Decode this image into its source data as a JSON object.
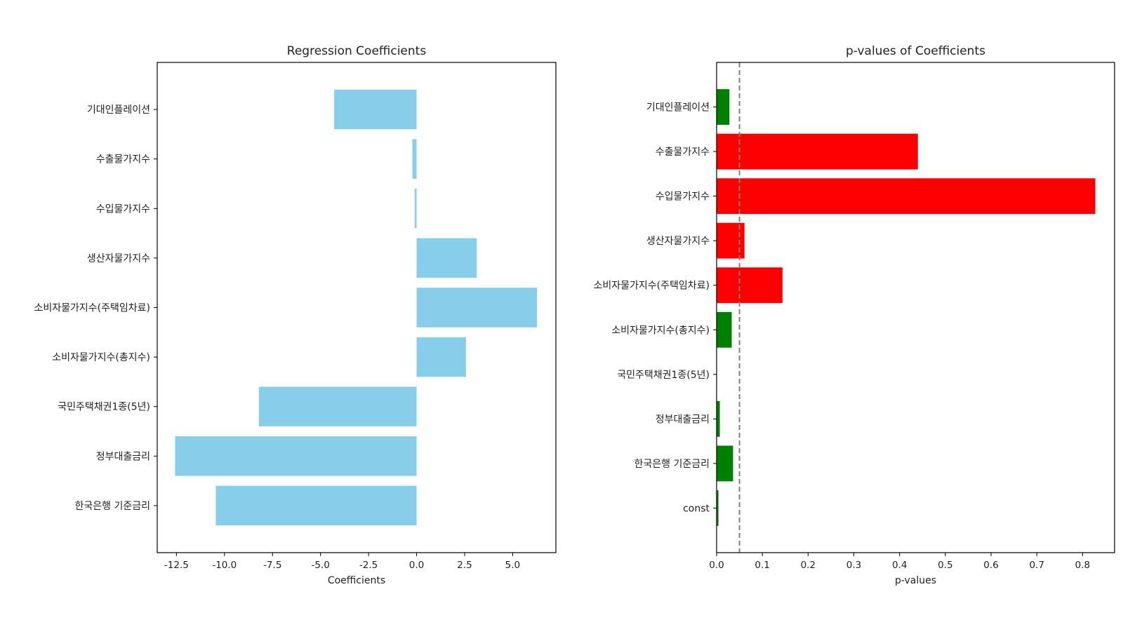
{
  "chart_data": [
    {
      "type": "bar",
      "orientation": "horizontal",
      "title": "Regression Coefficients",
      "xlabel": "Coefficients",
      "ylabel": "",
      "xlim": [
        -13.5,
        7.25
      ],
      "xticks": [
        -12.5,
        -10.0,
        -7.5,
        -5.0,
        -2.5,
        0.0,
        2.5,
        5.0
      ],
      "xtick_labels": [
        "-12.5",
        "-10.0",
        "-7.5",
        "-5.0",
        "-2.5",
        "0.0",
        "2.5",
        "5.0"
      ],
      "categories": [
        "한국은행 기준금리",
        "정부대출금리",
        "국민주택채권1종(5년)",
        "소비자물가지수(총지수)",
        "소비자물가지수(주택임차료)",
        "생산자물가지수",
        "수입물가지수",
        "수출물가지수",
        "기대인플레이션"
      ],
      "values": [
        -10.45,
        -12.57,
        -8.21,
        2.57,
        6.27,
        3.13,
        -0.1,
        -0.22,
        -4.29
      ],
      "bar_color": "#87CEEB",
      "grid": false
    },
    {
      "type": "bar",
      "orientation": "horizontal",
      "title": "p-values of Coefficients",
      "xlabel": "p-values",
      "ylabel": "",
      "xlim": [
        0,
        0.87
      ],
      "xticks": [
        0.0,
        0.1,
        0.2,
        0.3,
        0.4,
        0.5,
        0.6,
        0.7,
        0.8
      ],
      "xtick_labels": [
        "0.0",
        "0.1",
        "0.2",
        "0.3",
        "0.4",
        "0.5",
        "0.6",
        "0.7",
        "0.8"
      ],
      "categories": [
        "const",
        "한국은행 기준금리",
        "정부대출금리",
        "국민주택채권1종(5년)",
        "소비자물가지수(총지수)",
        "소비자물가지수(주택임차료)",
        "생산자물가지수",
        "수입물가지수",
        "수출물가지수",
        "기대인플레이션"
      ],
      "values": [
        0.004,
        0.036,
        0.007,
        0.0001,
        0.033,
        0.144,
        0.061,
        0.828,
        0.44,
        0.028
      ],
      "significance_threshold": 0.05,
      "color_significant": "#008000",
      "color_not_significant": "#FF0000",
      "threshold_line_color": "#808080",
      "grid": false
    }
  ]
}
